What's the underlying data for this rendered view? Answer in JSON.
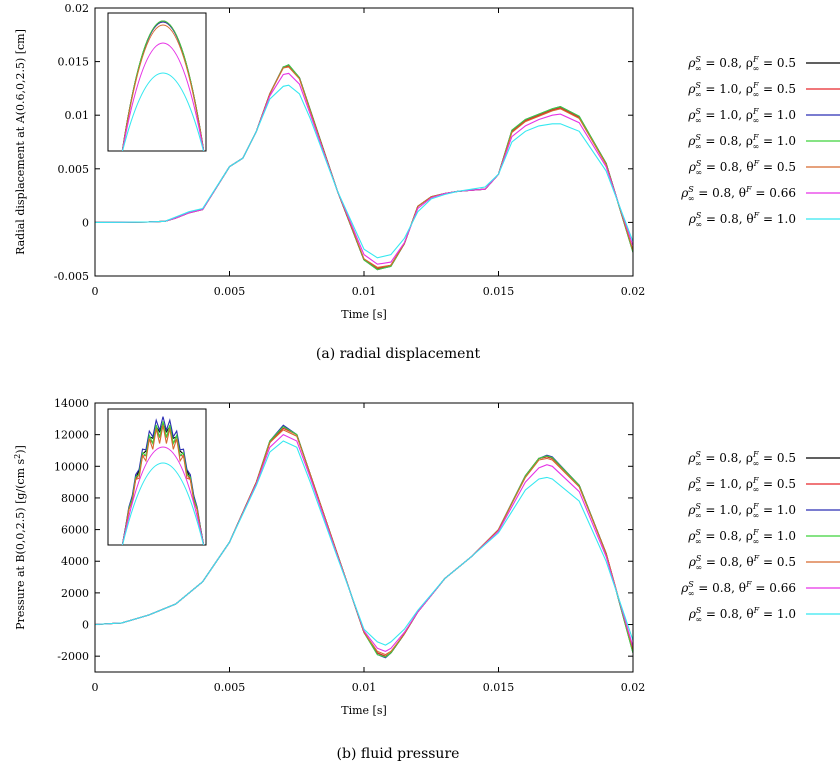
{
  "captions": [
    "(a) radial displacement",
    "(b) fluid pressure"
  ],
  "legend_entries": [
    {
      "rs": "0.8",
      "p": "ρ",
      "pv": "0.5",
      "color": "#000000"
    },
    {
      "rs": "1.0",
      "p": "ρ",
      "pv": "0.5",
      "color": "#e8262a"
    },
    {
      "rs": "1.0",
      "p": "ρ",
      "pv": "1.0",
      "color": "#2b2fb4"
    },
    {
      "rs": "0.8",
      "p": "ρ",
      "pv": "1.0",
      "color": "#3fd23b"
    },
    {
      "rs": "0.8",
      "p": "θ",
      "pv": "0.5",
      "color": "#d7692d"
    },
    {
      "rs": "0.8",
      "p": "θ",
      "pv": "0.66",
      "color": "#e633e6"
    },
    {
      "rs": "0.8",
      "p": "θ",
      "pv": "1.0",
      "color": "#35e8f0"
    }
  ],
  "chart_data": [
    {
      "type": "line",
      "xlabel": "Time [s]",
      "ylabel": "Radial displacement at A(0.6,0,2.5) [cm]",
      "xlim": [
        0,
        0.02
      ],
      "ylim": [
        -0.005,
        0.02
      ],
      "xticks": [
        "0",
        "0.005",
        "0.01",
        "0.015",
        "0.02"
      ],
      "yticks": [
        "-0.005",
        "0",
        "0.005",
        "0.01",
        "0.015",
        "0.02"
      ],
      "inset": "zoom of first peak",
      "x": [
        0,
        0.001,
        0.002,
        0.0026,
        0.003,
        0.0035,
        0.004,
        0.005,
        0.0055,
        0.006,
        0.0065,
        0.007,
        0.0072,
        0.0076,
        0.008,
        0.009,
        0.01,
        0.0105,
        0.011,
        0.0115,
        0.012,
        0.0125,
        0.013,
        0.0135,
        0.014,
        0.0145,
        0.015,
        0.0155,
        0.016,
        0.0165,
        0.017,
        0.0173,
        0.018,
        0.019,
        0.02
      ],
      "series": [
        {
          "name": "ρS∞=0.8, ρF∞=0.5",
          "values": [
            0,
            1e-05,
            5e-05,
            0.0001,
            0.0004,
            0.0009,
            0.0012,
            0.0052,
            0.006,
            0.0085,
            0.012,
            0.0145,
            0.0146,
            0.0135,
            0.0105,
            0.003,
            -0.0035,
            -0.0043,
            -0.004,
            -0.002,
            0.0015,
            0.0024,
            0.0027,
            0.0029,
            0.003,
            0.0031,
            0.0045,
            0.0085,
            0.0095,
            0.01,
            0.0105,
            0.0107,
            0.0098,
            0.0055,
            -0.0027
          ]
        },
        {
          "name": "ρS∞=1.0, ρF∞=0.5",
          "values": [
            0,
            1e-05,
            5e-05,
            0.0001,
            0.0004,
            0.0009,
            0.0012,
            0.0052,
            0.006,
            0.0085,
            0.012,
            0.0145,
            0.0146,
            0.0135,
            0.0105,
            0.003,
            -0.0035,
            -0.0043,
            -0.004,
            -0.002,
            0.0015,
            0.0024,
            0.0027,
            0.0029,
            0.003,
            0.0031,
            0.0045,
            0.0085,
            0.0095,
            0.01,
            0.0105,
            0.0107,
            0.0098,
            0.0055,
            -0.0027
          ]
        },
        {
          "name": "ρS∞=1.0, ρF∞=1.0",
          "values": [
            0,
            1e-05,
            5e-05,
            0.0001,
            0.0004,
            0.0009,
            0.0012,
            0.0052,
            0.006,
            0.0085,
            0.012,
            0.0145,
            0.0147,
            0.0135,
            0.0105,
            0.003,
            -0.0035,
            -0.0044,
            -0.0041,
            -0.002,
            0.0015,
            0.0024,
            0.0027,
            0.0029,
            0.003,
            0.0031,
            0.0045,
            0.0086,
            0.0096,
            0.0101,
            0.0106,
            0.0108,
            0.0099,
            0.0055,
            -0.0028
          ]
        },
        {
          "name": "ρS∞=0.8, ρF∞=1.0",
          "values": [
            0,
            1e-05,
            5e-05,
            0.0001,
            0.0004,
            0.0009,
            0.0012,
            0.0052,
            0.006,
            0.0085,
            0.012,
            0.0145,
            0.0147,
            0.0135,
            0.0105,
            0.003,
            -0.0035,
            -0.0044,
            -0.0041,
            -0.002,
            0.0015,
            0.0024,
            0.0027,
            0.0029,
            0.003,
            0.0031,
            0.0045,
            0.0086,
            0.0096,
            0.0101,
            0.0106,
            0.0108,
            0.0099,
            0.0055,
            -0.0028
          ]
        },
        {
          "name": "ρS∞=0.8, θF=0.5",
          "values": [
            0,
            1e-05,
            5e-05,
            0.0001,
            0.0004,
            0.0009,
            0.0012,
            0.0052,
            0.006,
            0.0085,
            0.012,
            0.0144,
            0.0145,
            0.0134,
            0.0104,
            0.003,
            -0.0034,
            -0.0042,
            -0.004,
            -0.002,
            0.0015,
            0.0024,
            0.0027,
            0.0029,
            0.003,
            0.0031,
            0.0045,
            0.0084,
            0.0094,
            0.0099,
            0.0104,
            0.0106,
            0.0097,
            0.0054,
            -0.0026
          ]
        },
        {
          "name": "ρS∞=0.8, θF=0.66",
          "values": [
            0,
            1e-05,
            5e-05,
            0.0001,
            0.0004,
            0.0009,
            0.0012,
            0.0052,
            0.006,
            0.0085,
            0.0118,
            0.0138,
            0.0139,
            0.0129,
            0.0101,
            0.003,
            -0.003,
            -0.0039,
            -0.0037,
            -0.0019,
            0.0013,
            0.0023,
            0.0027,
            0.0029,
            0.003,
            0.0031,
            0.0045,
            0.008,
            0.009,
            0.0096,
            0.01,
            0.0101,
            0.0093,
            0.0052,
            -0.0022
          ]
        },
        {
          "name": "ρS∞=0.8, θF=1.0",
          "values": [
            0,
            1e-05,
            5e-05,
            0.0001,
            0.0005,
            0.001,
            0.0013,
            0.0052,
            0.006,
            0.0085,
            0.0115,
            0.0127,
            0.0128,
            0.012,
            0.0097,
            0.003,
            -0.0025,
            -0.0033,
            -0.003,
            -0.0015,
            0.001,
            0.0022,
            0.0026,
            0.0029,
            0.0031,
            0.0033,
            0.0045,
            0.0075,
            0.0085,
            0.009,
            0.0092,
            0.0092,
            0.0085,
            0.0048,
            -0.0018
          ]
        }
      ]
    },
    {
      "type": "line",
      "xlabel": "Time [s]",
      "ylabel": "Pressure at B(0,0,2.5) [g/(cm s2)]",
      "xlim": [
        0,
        0.02
      ],
      "ylim": [
        -3000,
        14000
      ],
      "xticks": [
        "0",
        "0.005",
        "0.01",
        "0.015",
        "0.02"
      ],
      "yticks": [
        "-2000",
        "0",
        "2000",
        "4000",
        "6000",
        "8000",
        "10000",
        "12000",
        "14000"
      ],
      "inset": "zoom of first peak",
      "x": [
        0,
        0.001,
        0.002,
        0.003,
        0.004,
        0.005,
        0.006,
        0.0065,
        0.007,
        0.0075,
        0.008,
        0.009,
        0.01,
        0.0105,
        0.0108,
        0.011,
        0.0115,
        0.012,
        0.013,
        0.014,
        0.015,
        0.016,
        0.0165,
        0.0168,
        0.017,
        0.018,
        0.019,
        0.02
      ],
      "series": [
        {
          "name": "ρS∞=0.8, ρF∞=0.5",
          "values": [
            0,
            100,
            600,
            1300,
            2700,
            5200,
            9000,
            11500,
            12500,
            12000,
            9500,
            4500,
            -500,
            -1800,
            -2000,
            -1800,
            -600,
            800,
            2900,
            4300,
            6000,
            9400,
            10500,
            10600,
            10500,
            8800,
            4500,
            -1700
          ]
        },
        {
          "name": "ρS∞=1.0, ρF∞=0.5",
          "values": [
            0,
            100,
            600,
            1300,
            2700,
            5200,
            9000,
            11500,
            12400,
            12000,
            9500,
            4500,
            -500,
            -1800,
            -2000,
            -1800,
            -600,
            800,
            2900,
            4300,
            6000,
            9400,
            10500,
            10600,
            10500,
            8800,
            4500,
            -1700
          ]
        },
        {
          "name": "ρS∞=1.0, ρF∞=1.0",
          "values": [
            0,
            100,
            600,
            1300,
            2700,
            5200,
            9000,
            11600,
            12600,
            12000,
            9500,
            4500,
            -500,
            -1900,
            -2100,
            -1800,
            -600,
            800,
            2900,
            4300,
            6000,
            9400,
            10500,
            10700,
            10600,
            8800,
            4500,
            -1800
          ]
        },
        {
          "name": "ρS∞=0.8, ρF∞=1.0",
          "values": [
            0,
            100,
            600,
            1300,
            2700,
            5200,
            9000,
            11600,
            12500,
            12000,
            9500,
            4500,
            -500,
            -1900,
            -2050,
            -1800,
            -600,
            800,
            2900,
            4300,
            6000,
            9400,
            10500,
            10650,
            10550,
            8800,
            4500,
            -1800
          ]
        },
        {
          "name": "ρS∞=0.8, θF=0.5",
          "values": [
            0,
            100,
            600,
            1300,
            2700,
            5200,
            9000,
            11500,
            12300,
            11900,
            9500,
            4500,
            -500,
            -1700,
            -1900,
            -1700,
            -600,
            800,
            2900,
            4300,
            6000,
            9300,
            10400,
            10500,
            10400,
            8700,
            4500,
            -1600
          ]
        },
        {
          "name": "ρS∞=0.8, θF=0.66",
          "values": [
            0,
            100,
            600,
            1300,
            2700,
            5200,
            8900,
            11200,
            12000,
            11600,
            9300,
            4400,
            -400,
            -1500,
            -1700,
            -1500,
            -500,
            800,
            2900,
            4300,
            5900,
            9000,
            9900,
            10100,
            10000,
            8400,
            4300,
            -1400
          ]
        },
        {
          "name": "ρS∞=0.8, θF=1.0",
          "values": [
            0,
            100,
            600,
            1300,
            2700,
            5200,
            8800,
            10900,
            11600,
            11200,
            9000,
            4300,
            -300,
            -1100,
            -1300,
            -1100,
            -300,
            900,
            2900,
            4300,
            5800,
            8500,
            9200,
            9300,
            9200,
            7800,
            4000,
            -1000
          ]
        }
      ]
    }
  ]
}
